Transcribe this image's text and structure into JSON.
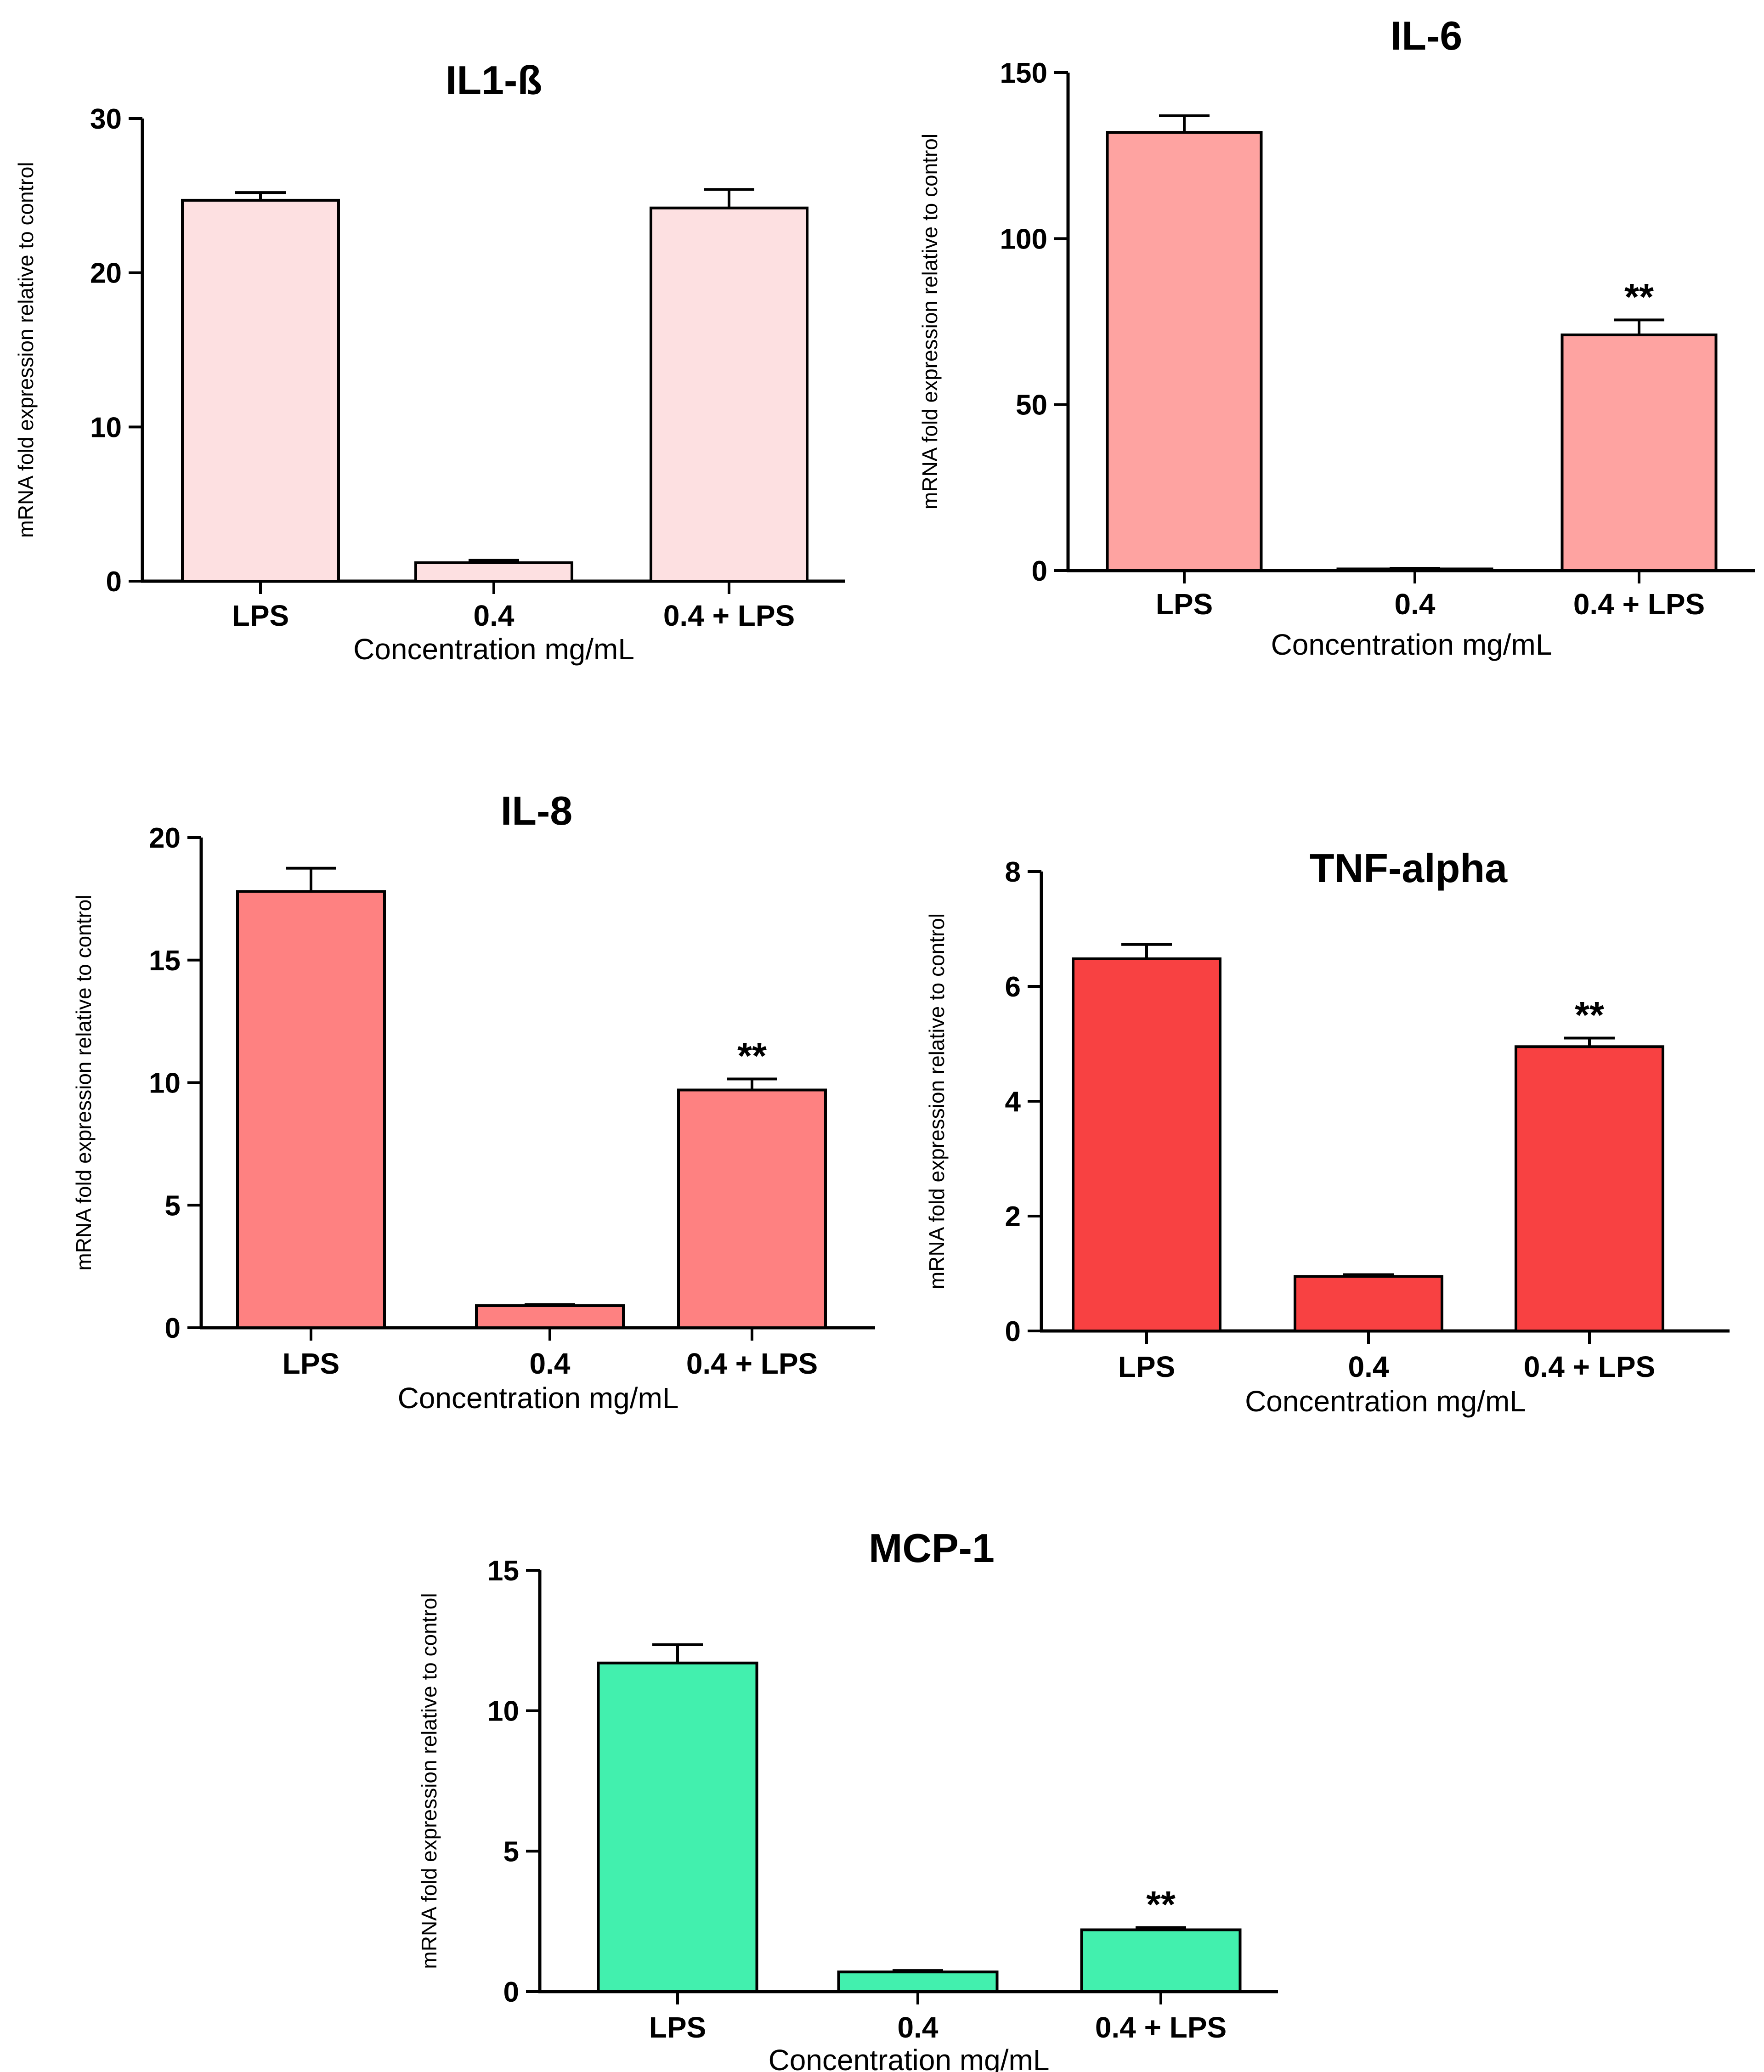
{
  "chart_data": [
    {
      "type": "bar",
      "title": "IL1-ß",
      "xlabel": "Concentration mg/mL",
      "ylabel": "mRNA fold expression relative to control",
      "categories": [
        "LPS",
        "0.4",
        "0.4 + LPS"
      ],
      "values": [
        24.7,
        1.2,
        24.2
      ],
      "errors": [
        0.5,
        0.15,
        1.2
      ],
      "significance": [
        "",
        "",
        ""
      ],
      "ylim": [
        0,
        30
      ],
      "yticks": [
        0,
        10,
        20,
        30
      ],
      "color": "#fde0e1",
      "grid": false
    },
    {
      "type": "bar",
      "title": "IL-6",
      "xlabel": "Concentration mg/mL",
      "ylabel": "mRNA fold expression relative to control",
      "categories": [
        "LPS",
        "0.4",
        "0.4 + LPS"
      ],
      "values": [
        132,
        0.5,
        71
      ],
      "errors": [
        5,
        0.2,
        4.5
      ],
      "significance": [
        "",
        "",
        "**"
      ],
      "ylim": [
        0,
        150
      ],
      "yticks": [
        0,
        50,
        100,
        150
      ],
      "color": "#fea3a1",
      "grid": false
    },
    {
      "type": "bar",
      "title": "IL-8",
      "xlabel": "Concentration mg/mL",
      "ylabel": "mRNA fold expression relative to control",
      "categories": [
        "LPS",
        "0.4",
        "0.4 + LPS"
      ],
      "values": [
        17.8,
        0.9,
        9.7
      ],
      "errors": [
        0.95,
        0.05,
        0.45
      ],
      "significance": [
        "",
        "",
        "**"
      ],
      "ylim": [
        0,
        20
      ],
      "yticks": [
        0,
        5,
        10,
        15,
        20
      ],
      "color": "#fe8181",
      "grid": false
    },
    {
      "type": "bar",
      "title": "TNF-alpha",
      "xlabel": "Concentration mg/mL",
      "ylabel": "mRNA fold expression relative to control",
      "categories": [
        "LPS",
        "0.4",
        "0.4 + LPS"
      ],
      "values": [
        6.48,
        0.95,
        4.95
      ],
      "errors": [
        0.25,
        0.03,
        0.15
      ],
      "significance": [
        "",
        "",
        "**"
      ],
      "ylim": [
        0,
        8
      ],
      "yticks": [
        0,
        2,
        4,
        6,
        8
      ],
      "color": "#f84142",
      "grid": false
    },
    {
      "type": "bar",
      "title": "MCP-1",
      "xlabel": "Concentration mg/mL",
      "ylabel": "mRNA fold expression relative to control",
      "categories": [
        "LPS",
        "0.4",
        "0.4 + LPS"
      ],
      "values": [
        11.7,
        0.7,
        2.2
      ],
      "errors": [
        0.65,
        0.05,
        0.08
      ],
      "significance": [
        "",
        "",
        "**"
      ],
      "ylim": [
        0,
        15
      ],
      "yticks": [
        0,
        5,
        10,
        15
      ],
      "color": "#42f0ae",
      "grid": false
    }
  ]
}
